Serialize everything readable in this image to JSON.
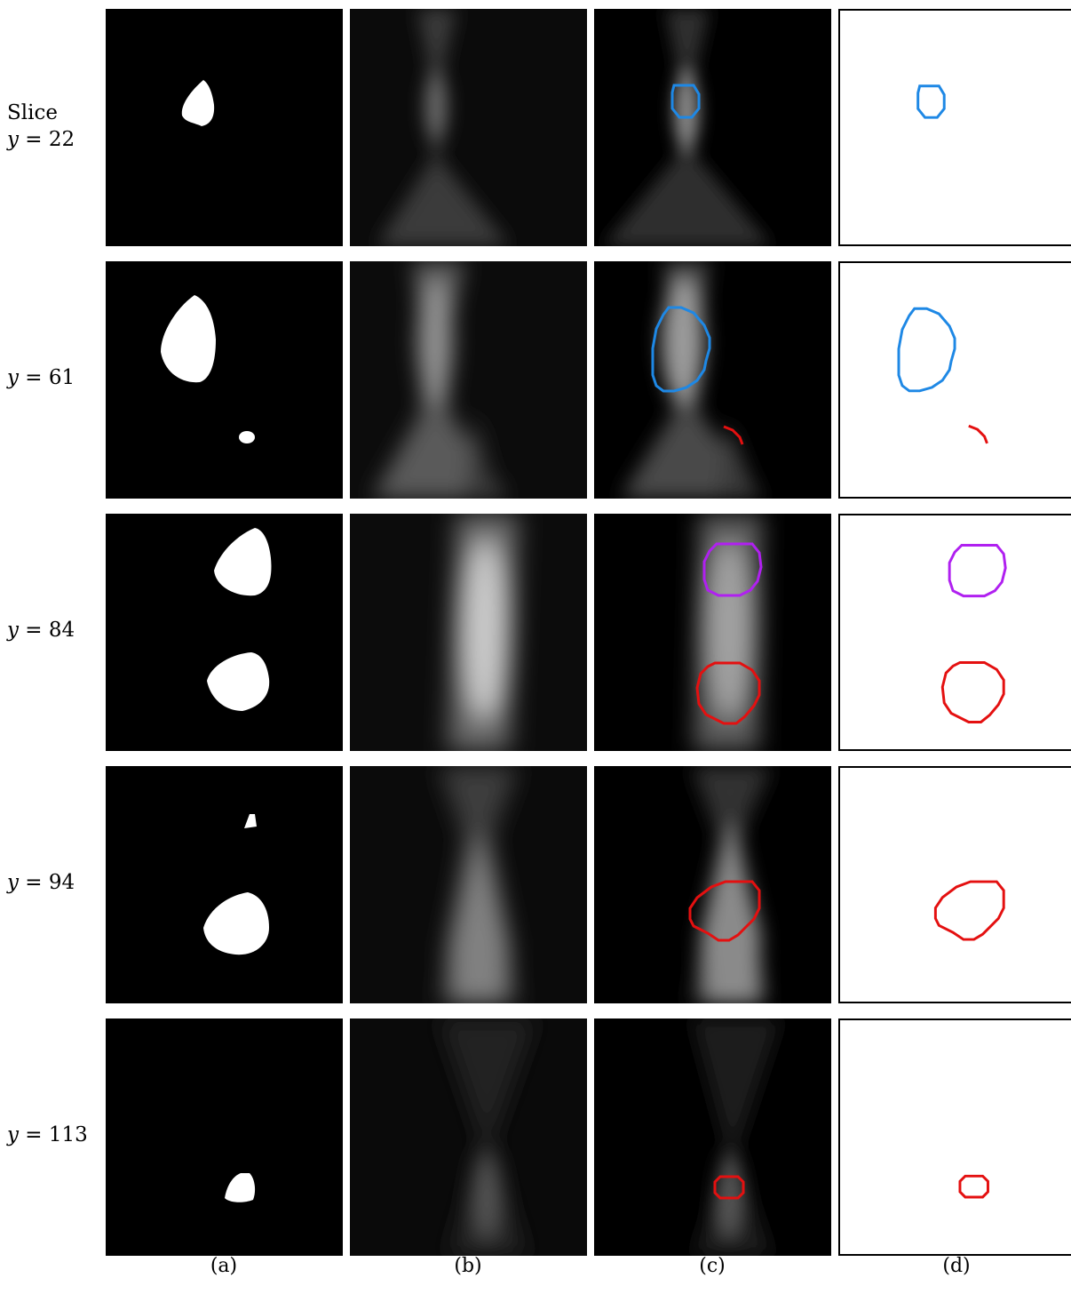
{
  "rows": [
    {
      "prefix": "Slice",
      "var": "y",
      "eq": " = ",
      "value": "22"
    },
    {
      "prefix": "",
      "var": "y",
      "eq": " = ",
      "value": "61"
    },
    {
      "prefix": "",
      "var": "y",
      "eq": " = ",
      "value": "84"
    },
    {
      "prefix": "",
      "var": "y",
      "eq": " = ",
      "value": "94"
    },
    {
      "prefix": "",
      "var": "y",
      "eq": " = ",
      "value": "113"
    }
  ],
  "columns": [
    "(a)",
    "(b)",
    "(c)",
    "(d)"
  ],
  "colors": {
    "blue": "#1e88e5",
    "red": "#e41010",
    "purple": "#b020f0",
    "mask": "#ffffff",
    "background": "#000000"
  }
}
